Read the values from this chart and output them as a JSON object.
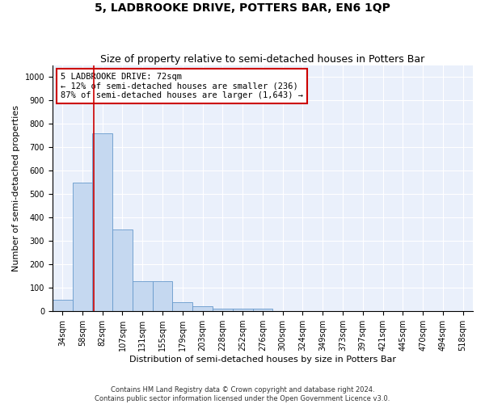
{
  "title": "5, LADBROOKE DRIVE, POTTERS BAR, EN6 1QP",
  "subtitle": "Size of property relative to semi-detached houses in Potters Bar",
  "xlabel": "Distribution of semi-detached houses by size in Potters Bar",
  "ylabel": "Number of semi-detached properties",
  "bin_labels": [
    "34sqm",
    "58sqm",
    "82sqm",
    "107sqm",
    "131sqm",
    "155sqm",
    "179sqm",
    "203sqm",
    "228sqm",
    "252sqm",
    "276sqm",
    "300sqm",
    "324sqm",
    "349sqm",
    "373sqm",
    "397sqm",
    "421sqm",
    "445sqm",
    "470sqm",
    "494sqm",
    "518sqm"
  ],
  "bar_values": [
    50,
    550,
    760,
    350,
    130,
    130,
    40,
    20,
    10,
    10,
    10,
    0,
    0,
    0,
    0,
    0,
    0,
    0,
    0,
    0,
    0
  ],
  "bar_color": "#c5d8f0",
  "bar_edge_color": "#6699cc",
  "bg_color": "#eaf0fb",
  "grid_color": "#ffffff",
  "property_line_x": 1.58,
  "property_line_color": "#cc0000",
  "annotation_text": "5 LADBROOKE DRIVE: 72sqm\n← 12% of semi-detached houses are smaller (236)\n87% of semi-detached houses are larger (1,643) →",
  "annotation_box_color": "#cc0000",
  "ylim": [
    0,
    1050
  ],
  "yticks": [
    0,
    100,
    200,
    300,
    400,
    500,
    600,
    700,
    800,
    900,
    1000
  ],
  "footnote1": "Contains HM Land Registry data © Crown copyright and database right 2024.",
  "footnote2": "Contains public sector information licensed under the Open Government Licence v3.0.",
  "title_fontsize": 10,
  "subtitle_fontsize": 9,
  "axis_fontsize": 8,
  "tick_fontsize": 7,
  "annotation_fontsize": 7.5,
  "ylabel_fontsize": 8
}
